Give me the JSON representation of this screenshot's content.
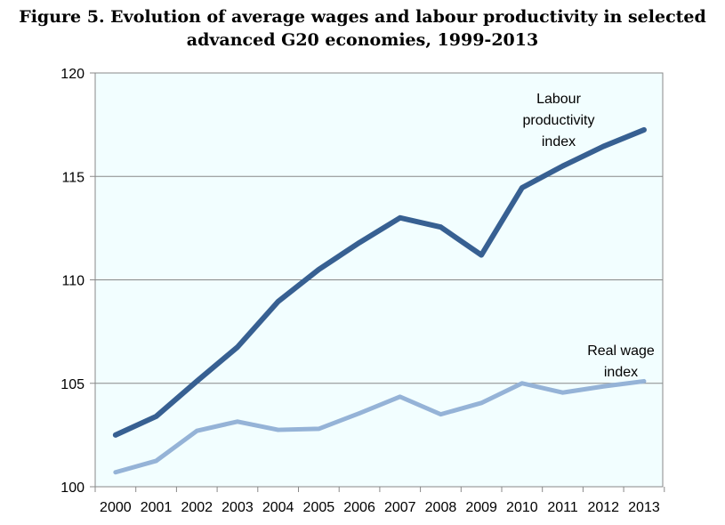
{
  "chart_data": {
    "type": "line",
    "title": "Figure 5.  Evolution of average wages and labour productivity in selected advanced G20 economies, 1999-2013",
    "title_lines": [
      "Figure 5.  Evolution of average wages and labour productivity in selected",
      "advanced G20 economies, 1999-2013"
    ],
    "x": [
      "2000",
      "2001",
      "2002",
      "2003",
      "2004",
      "2005",
      "2006",
      "2007",
      "2008",
      "2009",
      "2010",
      "2011",
      "2012",
      "2013"
    ],
    "ylim": [
      100,
      120
    ],
    "yticks": [
      "100",
      "105",
      "110",
      "115",
      "120"
    ],
    "grid": true,
    "series": [
      {
        "name": "Labour productivity index",
        "label_lines": [
          "Labour",
          "productivity",
          "index"
        ],
        "color": "#376092",
        "values": [
          102.5,
          103.4,
          105.1,
          106.75,
          108.95,
          110.5,
          111.8,
          113.0,
          112.55,
          111.2,
          114.45,
          115.5,
          116.45,
          117.25
        ]
      },
      {
        "name": "Real wage index",
        "label_lines": [
          "Real wage",
          "index"
        ],
        "color": "#95B3D7",
        "values": [
          100.7,
          101.25,
          102.7,
          103.15,
          102.75,
          102.8,
          103.55,
          104.35,
          103.5,
          104.05,
          105.0,
          104.55,
          104.85,
          105.1
        ]
      }
    ],
    "plot_background": "#F2FEFF"
  }
}
